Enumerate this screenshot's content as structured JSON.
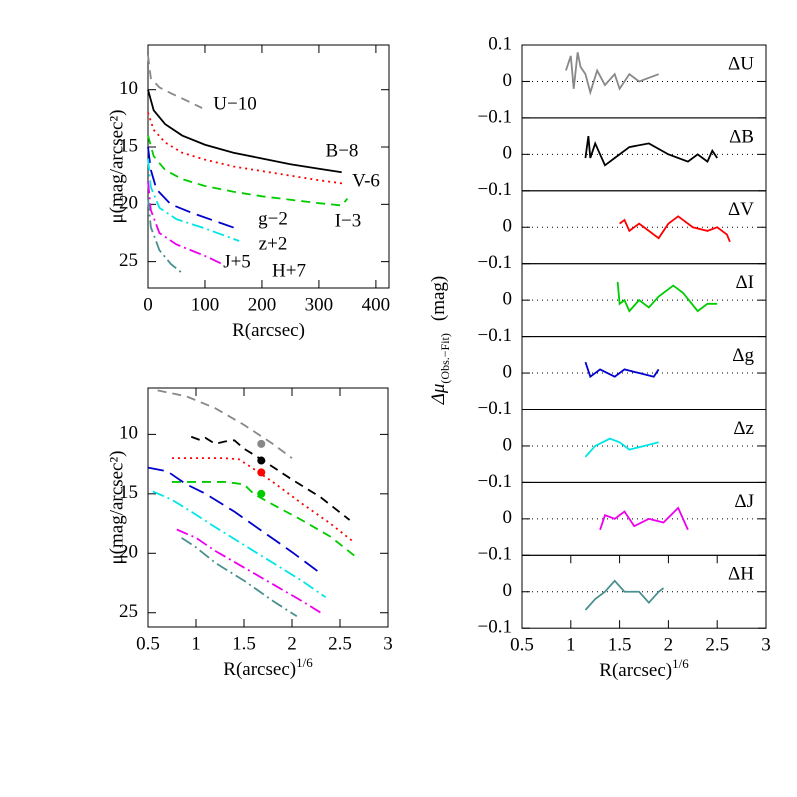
{
  "chart_data": [
    {
      "type": "line",
      "xlabel": "R(arcsec)",
      "ylabel": "μ(mag/arcsec²)",
      "xlim": [
        0,
        423
      ],
      "ylim": [
        27.3,
        6.1
      ],
      "xticks": [
        0,
        100,
        200,
        300,
        400
      ],
      "yticks": [
        10,
        15,
        20,
        25
      ],
      "series": [
        {
          "name": "U−10",
          "color": "#888888",
          "style": "dashed",
          "x": [
            0,
            5,
            20,
            40,
            70,
            95
          ],
          "values": [
            7,
            9,
            9.8,
            10.3,
            11.0,
            11.6
          ]
        },
        {
          "name": "B−8",
          "color": "#000000",
          "style": "solid",
          "x": [
            0,
            10,
            30,
            60,
            100,
            150,
            200,
            250,
            300,
            340
          ],
          "values": [
            10,
            11.8,
            13,
            14,
            14.8,
            15.5,
            16,
            16.5,
            16.9,
            17.2
          ]
        },
        {
          "name": "V-6",
          "color": "#ff0000",
          "style": "dotted",
          "x": [
            0,
            10,
            30,
            60,
            100,
            150,
            200,
            250,
            300,
            345
          ],
          "values": [
            12,
            13.5,
            14.6,
            15.5,
            16.1,
            16.7,
            17.1,
            17.5,
            17.9,
            18.2
          ]
        },
        {
          "name": "I−3",
          "color": "#00cc00",
          "style": "dashed",
          "x": [
            0,
            10,
            30,
            60,
            100,
            150,
            200,
            250,
            300,
            340,
            350
          ],
          "values": [
            14,
            15.8,
            17,
            17.8,
            18.4,
            18.9,
            19.3,
            19.6,
            19.9,
            20.1,
            19.5
          ]
        },
        {
          "name": "g−2",
          "color": "#0000cc",
          "style": "longdash",
          "x": [
            0,
            5,
            15,
            40,
            80,
            120,
            160
          ],
          "values": [
            15,
            17,
            18.7,
            20,
            20.8,
            21.5,
            22.2
          ]
        },
        {
          "name": "z+2",
          "color": "#00e5e5",
          "style": "dashdot",
          "x": [
            0,
            5,
            20,
            50,
            100,
            160
          ],
          "values": [
            16,
            18.5,
            20.3,
            21.3,
            22.1,
            23.2
          ]
        },
        {
          "name": "J+5",
          "color": "#ee00ee",
          "style": "dashdot",
          "x": [
            0,
            5,
            20,
            50,
            100,
            130
          ],
          "values": [
            18,
            20.5,
            22.5,
            23.5,
            24.5,
            25.2
          ]
        },
        {
          "name": "H+7",
          "color": "#4a9090",
          "style": "dashdot",
          "x": [
            0,
            5,
            20,
            40,
            60
          ],
          "values": [
            19.5,
            22,
            24,
            25.2,
            26
          ]
        }
      ]
    },
    {
      "type": "line",
      "xlabel": "R(arcsec)",
      "xlabel_sup": "1/6",
      "ylabel": "μ(mag/arcsec²)",
      "xlim": [
        0.5,
        3
      ],
      "ylim": [
        26.2,
        6.1
      ],
      "xticks": [
        0.5,
        1,
        1.5,
        2,
        2.5,
        3
      ],
      "yticks": [
        10,
        15,
        20,
        25
      ],
      "series": [
        {
          "color": "#888888",
          "style": "dashed",
          "x": [
            0.6,
            0.9,
            1.2,
            1.5,
            1.8,
            2.0
          ],
          "values": [
            6.3,
            6.8,
            7.8,
            9.2,
            10.8,
            12.0
          ]
        },
        {
          "color": "#000000",
          "style": "dashed",
          "x": [
            0.95,
            1.05,
            1.1,
            1.2,
            1.3,
            1.4,
            1.5,
            1.7,
            2.0,
            2.3,
            2.6
          ],
          "values": [
            10.2,
            10.5,
            10.3,
            10.8,
            10.6,
            10.5,
            11.2,
            12.2,
            13.8,
            15.3,
            17.2
          ]
        },
        {
          "color": "#ff0000",
          "style": "dotted",
          "x": [
            0.75,
            1.0,
            1.3,
            1.45,
            1.6,
            1.8,
            2.1,
            2.4,
            2.65
          ],
          "values": [
            12.0,
            12.0,
            12.0,
            12.1,
            12.9,
            14.0,
            15.8,
            17.5,
            19.1
          ]
        },
        {
          "color": "#00cc00",
          "style": "dashed",
          "x": [
            0.75,
            1.0,
            1.3,
            1.5,
            1.6,
            1.8,
            2.1,
            2.4,
            2.65
          ],
          "values": [
            14.0,
            14.0,
            14.0,
            14.2,
            15.0,
            15.9,
            17.2,
            18.6,
            20.2
          ]
        },
        {
          "color": "#0000cc",
          "style": "longdash",
          "x": [
            0.5,
            0.7,
            0.9,
            1.1,
            1.4,
            1.7,
            2.0,
            2.3
          ],
          "values": [
            12.8,
            13.1,
            14.2,
            15.0,
            16.5,
            18.2,
            19.9,
            21.7
          ]
        },
        {
          "color": "#00e5e5",
          "style": "dashdot",
          "x": [
            0.55,
            0.75,
            0.95,
            1.2,
            1.5,
            1.8,
            2.1,
            2.35
          ],
          "values": [
            14.8,
            15.5,
            16.5,
            17.8,
            19.3,
            20.8,
            22.3,
            23.7
          ]
        },
        {
          "color": "#ee00ee",
          "style": "dashdot",
          "x": [
            0.8,
            1.0,
            1.2,
            1.5,
            1.8,
            2.1,
            2.3
          ],
          "values": [
            18.0,
            18.7,
            19.8,
            21.2,
            22.6,
            24.0,
            25.0
          ]
        },
        {
          "color": "#4a9090",
          "style": "dashdot",
          "x": [
            0.85,
            1.0,
            1.2,
            1.5,
            1.8,
            2.05
          ],
          "values": [
            18.7,
            19.5,
            20.8,
            22.3,
            24.0,
            25.3
          ]
        }
      ],
      "markers": {
        "x": [
          1.68,
          1.68,
          1.68,
          1.68
        ],
        "values": [
          10.8,
          12.2,
          13.2,
          15.0
        ],
        "colors": [
          "#888888",
          "#000000",
          "#ff0000",
          "#00cc00"
        ]
      }
    },
    {
      "type": "residual",
      "label": "ΔU",
      "ylabel": "Δμ",
      "ylabel_sub": "(Obs.−Fit)",
      "ylabel_unit": "(mag)",
      "xlim": [
        0.5,
        3
      ],
      "ylim": [
        -0.1,
        0.1
      ],
      "yticks": [
        {
          "value": -0.1,
          "label": "−0.1"
        },
        0,
        0.1
      ],
      "refline": 0,
      "series": [
        {
          "color": "#888888",
          "x": [
            0.95,
            1.0,
            1.03,
            1.07,
            1.1,
            1.15,
            1.2,
            1.27,
            1.35,
            1.45,
            1.5,
            1.6,
            1.7,
            1.8,
            1.9
          ],
          "values": [
            0.03,
            0.07,
            -0.02,
            0.08,
            0.04,
            0.02,
            -0.03,
            0.03,
            -0.01,
            0.02,
            -0.02,
            0.02,
            0.0,
            0.01,
            0.02
          ]
        }
      ]
    },
    {
      "type": "residual",
      "label": "ΔB",
      "xlim": [
        0.5,
        3
      ],
      "ylim": [
        -0.1,
        0.1
      ],
      "yticks": [
        {
          "value": -0.1,
          "label": "−0.1"
        },
        0
      ],
      "refline": 0,
      "series": [
        {
          "color": "#000000",
          "x": [
            1.15,
            1.18,
            1.2,
            1.25,
            1.35,
            1.45,
            1.6,
            1.8,
            2.0,
            2.2,
            2.3,
            2.4,
            2.45,
            2.5
          ],
          "values": [
            -0.01,
            0.05,
            -0.01,
            0.03,
            -0.03,
            -0.01,
            0.02,
            0.03,
            0.0,
            -0.02,
            0.0,
            -0.02,
            0.01,
            -0.01
          ]
        }
      ]
    },
    {
      "type": "residual",
      "label": "ΔV",
      "xlim": [
        0.5,
        3
      ],
      "ylim": [
        -0.1,
        0.1
      ],
      "yticks": [
        {
          "value": -0.1,
          "label": "−0.1"
        },
        0
      ],
      "refline": 0,
      "series": [
        {
          "color": "#ff0000",
          "x": [
            1.5,
            1.55,
            1.6,
            1.7,
            1.8,
            1.9,
            2.0,
            2.1,
            2.25,
            2.4,
            2.5,
            2.6,
            2.63
          ],
          "values": [
            0.01,
            0.02,
            -0.01,
            0.01,
            -0.01,
            -0.03,
            0.01,
            0.03,
            0.0,
            -0.01,
            0.0,
            -0.02,
            -0.04
          ]
        }
      ]
    },
    {
      "type": "residual",
      "label": "ΔI",
      "xlim": [
        0.5,
        3
      ],
      "ylim": [
        -0.1,
        0.1
      ],
      "yticks": [
        {
          "value": -0.1,
          "label": "−0.1"
        },
        0
      ],
      "refline": 0,
      "series": [
        {
          "color": "#00cc00",
          "x": [
            1.48,
            1.5,
            1.55,
            1.6,
            1.7,
            1.8,
            1.9,
            2.05,
            2.15,
            2.3,
            2.4,
            2.5
          ],
          "values": [
            0.05,
            -0.01,
            0.0,
            -0.03,
            0.0,
            -0.02,
            0.01,
            0.04,
            0.02,
            -0.03,
            -0.01,
            -0.01
          ]
        }
      ]
    },
    {
      "type": "residual",
      "label": "Δg",
      "xlim": [
        0.5,
        3
      ],
      "ylim": [
        -0.1,
        0.1
      ],
      "yticks": [
        {
          "value": -0.1,
          "label": "−0.1"
        },
        0
      ],
      "refline": 0,
      "series": [
        {
          "color": "#0000cc",
          "x": [
            1.15,
            1.2,
            1.3,
            1.45,
            1.55,
            1.7,
            1.85,
            1.9
          ],
          "values": [
            0.03,
            -0.01,
            0.01,
            -0.01,
            0.01,
            0.0,
            -0.01,
            0.01
          ]
        }
      ]
    },
    {
      "type": "residual",
      "label": "Δz",
      "xlim": [
        0.5,
        3
      ],
      "ylim": [
        -0.1,
        0.1
      ],
      "yticks": [
        {
          "value": -0.1,
          "label": "−0.1"
        },
        0
      ],
      "refline": 0,
      "series": [
        {
          "color": "#00e5e5",
          "x": [
            1.15,
            1.25,
            1.4,
            1.5,
            1.6,
            1.75,
            1.9
          ],
          "values": [
            -0.03,
            0.0,
            0.02,
            0.01,
            -0.01,
            0.0,
            0.01
          ]
        }
      ]
    },
    {
      "type": "residual",
      "label": "ΔJ",
      "xlim": [
        0.5,
        3
      ],
      "ylim": [
        -0.1,
        0.1
      ],
      "yticks": [
        {
          "value": -0.1,
          "label": "−0.1"
        },
        0
      ],
      "refline": 0,
      "series": [
        {
          "color": "#ee00ee",
          "x": [
            1.3,
            1.35,
            1.45,
            1.55,
            1.65,
            1.8,
            1.95,
            2.1,
            2.2
          ],
          "values": [
            -0.03,
            0.01,
            0.0,
            0.02,
            -0.02,
            0.0,
            -0.01,
            0.03,
            -0.03
          ]
        }
      ]
    },
    {
      "type": "residual",
      "label": "ΔH",
      "xlabel": "R(arcsec)",
      "xlabel_sup": "1/6",
      "xlim": [
        0.5,
        3
      ],
      "ylim": [
        -0.1,
        0.1
      ],
      "xticks": [
        0.5,
        1,
        1.5,
        2,
        2.5,
        3
      ],
      "yticks": [
        {
          "value": -0.1,
          "label": "−0.1"
        },
        0
      ],
      "refline": 0,
      "series": [
        {
          "color": "#4a9090",
          "x": [
            1.15,
            1.25,
            1.35,
            1.45,
            1.55,
            1.7,
            1.8,
            1.9,
            1.95
          ],
          "values": [
            -0.05,
            -0.02,
            0.0,
            0.03,
            0.0,
            0.0,
            -0.03,
            0.0,
            0.01
          ]
        }
      ]
    }
  ]
}
